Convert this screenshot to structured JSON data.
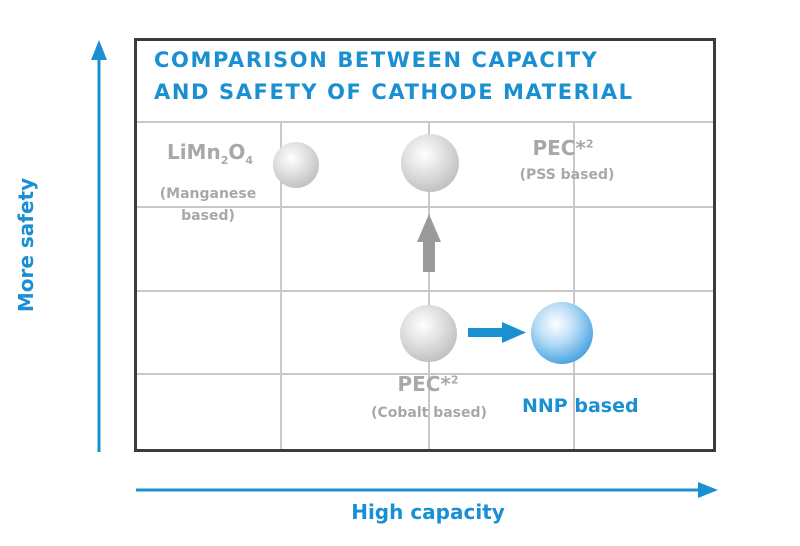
{
  "title": {
    "line1": "COMPARISON BETWEEN CAPACITY",
    "line2": "AND SAFETY OF CATHODE MATERIAL"
  },
  "axes": {
    "y_label": "More safety",
    "x_label": "High capacity"
  },
  "materials": {
    "limn2o4": {
      "formula_parts": [
        "LiMn",
        "2",
        "O",
        "4"
      ],
      "desc_line1": "(Manganese",
      "desc_line2": "based)"
    },
    "pec_pss": {
      "name": "PEC*",
      "footnote": "2",
      "desc": "(PSS based)"
    },
    "pec_cobalt": {
      "name": "PEC*",
      "footnote": "2",
      "desc": "(Cobalt based)"
    },
    "nnp": {
      "name": "NNP based"
    }
  },
  "colors": {
    "accent_blue": "#1a90d2",
    "grey_label": "#a8a8a8",
    "frame": "#3c3c3c",
    "grid": "#c9c9c9"
  }
}
